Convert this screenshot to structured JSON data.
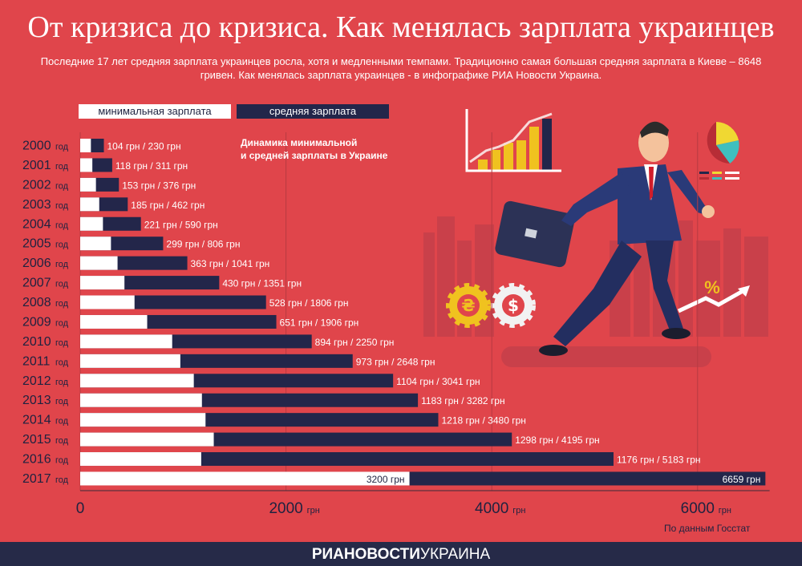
{
  "header": {
    "title": "От кризиса до кризиса. Как менялась зарплата украинцев",
    "subtitle": "Последние 17 лет средняя зарплата украинцев росла, хотя и медленными темпами. Традиционно самая большая средняя зарплата в Киеве – 8648 гривен. Как менялась зарплата украинцев - в инфографике РИА Новости Украина."
  },
  "legend": {
    "min_label": "минимальная зарплата",
    "avg_label": "средняя зарплата"
  },
  "chart_title": "Динамика минимальной\nи средней зарплаты в Украине",
  "source": "По данным Госстат",
  "footer": {
    "brand_bold": "РИАНОВОСТИ",
    "brand_light": "УКРАИНА"
  },
  "colors": {
    "background": "#e0454b",
    "min_bar": "#ffffff",
    "avg_bar": "#23264a",
    "footer": "#262a48"
  },
  "chart_data": {
    "type": "bar",
    "orientation": "horizontal",
    "year_suffix": "год",
    "unit": "грн",
    "categories": [
      "2000",
      "2001",
      "2002",
      "2003",
      "2004",
      "2005",
      "2006",
      "2007",
      "2008",
      "2009",
      "2010",
      "2011",
      "2012",
      "2013",
      "2014",
      "2015",
      "2016",
      "2017"
    ],
    "series": [
      {
        "name": "минимальная зарплата",
        "values": [
          104,
          118,
          153,
          185,
          221,
          299,
          363,
          430,
          528,
          651,
          894,
          973,
          1104,
          1183,
          1218,
          1298,
          1176,
          3200
        ]
      },
      {
        "name": "средняя зарплата",
        "values": [
          230,
          311,
          376,
          462,
          590,
          806,
          1041,
          1351,
          1806,
          1906,
          2250,
          2648,
          3041,
          3282,
          3480,
          4195,
          5183,
          6659
        ]
      }
    ],
    "x_ticks": [
      0,
      2000,
      4000,
      6000
    ],
    "xlim": [
      0,
      6700
    ],
    "grid": true
  }
}
